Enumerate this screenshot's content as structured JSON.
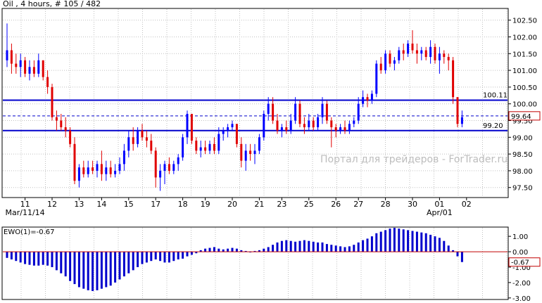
{
  "chart_data": {
    "type": "candlestick",
    "title": "Oil , 4 hours, # 105 / 482",
    "watermark": "Портал для трейдеров - ForTrader.ru",
    "price_ticks": [
      "102.50",
      "102.00",
      "101.50",
      "101.00",
      "100.50",
      "100.00",
      "99.50",
      "99.00",
      "98.50",
      "98.00",
      "97.50"
    ],
    "price_ylim": [
      97.2,
      102.85
    ],
    "x_labels": [
      {
        "i": 4,
        "text": "11"
      },
      {
        "i": 10,
        "text": "12"
      },
      {
        "i": 16,
        "text": "13"
      },
      {
        "i": 21,
        "text": "14"
      },
      {
        "i": 27,
        "text": "15"
      },
      {
        "i": 33,
        "text": "17"
      },
      {
        "i": 39,
        "text": "18"
      },
      {
        "i": 44,
        "text": "19"
      },
      {
        "i": 50,
        "text": "20"
      },
      {
        "i": 56,
        "text": "21"
      },
      {
        "i": 61,
        "text": "23"
      },
      {
        "i": 67,
        "text": "25"
      },
      {
        "i": 73,
        "text": "26"
      },
      {
        "i": 78,
        "text": "27"
      },
      {
        "i": 84,
        "text": "28"
      },
      {
        "i": 90,
        "text": "30"
      },
      {
        "i": 96,
        "text": "01"
      },
      {
        "i": 102,
        "text": "02"
      }
    ],
    "x_sublabels": [
      {
        "i": 4,
        "text": "Mar/11/14"
      },
      {
        "i": 96,
        "text": "Apr/01"
      }
    ],
    "levels": [
      {
        "value": 100.11,
        "label": "100.11",
        "style": "solid"
      },
      {
        "value": 99.2,
        "label": "99.20",
        "style": "solid"
      },
      {
        "value": 99.64,
        "label": "99.64",
        "style": "dashed",
        "boxed": true
      }
    ],
    "colors": {
      "bull": "#0000ff",
      "bear": "#e00000",
      "ewo": "#0000cc",
      "level": "#0000cc",
      "grid": "#c0c0c0"
    },
    "candles": [
      [
        101.3,
        102.4,
        101.1,
        101.6
      ],
      [
        101.6,
        101.8,
        100.9,
        101.2
      ],
      [
        101.2,
        101.5,
        100.9,
        101.1
      ],
      [
        101.1,
        101.5,
        100.8,
        101.3
      ],
      [
        101.3,
        101.4,
        100.8,
        100.9
      ],
      [
        100.9,
        101.3,
        100.7,
        101.1
      ],
      [
        101.1,
        101.3,
        100.8,
        100.9
      ],
      [
        100.9,
        101.5,
        100.8,
        101.3
      ],
      [
        101.3,
        101.3,
        100.7,
        100.8
      ],
      [
        100.8,
        101.0,
        100.3,
        100.5
      ],
      [
        100.5,
        100.6,
        99.5,
        99.6
      ],
      [
        99.6,
        99.8,
        99.2,
        99.5
      ],
      [
        99.5,
        99.7,
        99.2,
        99.3
      ],
      [
        99.3,
        99.6,
        99.0,
        99.2
      ],
      [
        99.2,
        99.3,
        98.7,
        98.8
      ],
      [
        98.8,
        99.0,
        97.6,
        97.7
      ],
      [
        97.7,
        98.2,
        97.5,
        98.1
      ],
      [
        98.1,
        98.3,
        97.8,
        97.9
      ],
      [
        97.9,
        98.3,
        97.8,
        98.1
      ],
      [
        98.1,
        98.3,
        97.9,
        98.0
      ],
      [
        98.0,
        98.3,
        97.8,
        98.2
      ],
      [
        98.2,
        98.6,
        97.7,
        97.9
      ],
      [
        97.9,
        98.3,
        97.7,
        98.1
      ],
      [
        98.1,
        98.3,
        97.8,
        97.9
      ],
      [
        97.9,
        98.2,
        97.8,
        98.0
      ],
      [
        98.0,
        98.4,
        97.9,
        98.2
      ],
      [
        98.2,
        98.8,
        98.0,
        98.6
      ],
      [
        98.6,
        99.2,
        98.4,
        99.0
      ],
      [
        99.0,
        99.3,
        98.6,
        98.8
      ],
      [
        98.8,
        99.3,
        98.7,
        99.2
      ],
      [
        99.2,
        99.4,
        98.9,
        99.0
      ],
      [
        99.0,
        99.2,
        98.7,
        98.9
      ],
      [
        98.9,
        99.1,
        98.5,
        98.6
      ],
      [
        98.6,
        98.7,
        97.5,
        97.8
      ],
      [
        97.8,
        98.2,
        97.4,
        98.0
      ],
      [
        98.0,
        98.3,
        97.6,
        98.2
      ],
      [
        98.2,
        98.4,
        97.9,
        98.0
      ],
      [
        98.0,
        98.3,
        97.9,
        98.2
      ],
      [
        98.2,
        98.5,
        98.0,
        98.4
      ],
      [
        98.4,
        99.1,
        98.3,
        99.0
      ],
      [
        99.0,
        99.8,
        98.8,
        99.7
      ],
      [
        99.7,
        99.7,
        98.8,
        98.9
      ],
      [
        98.9,
        99.0,
        98.5,
        98.6
      ],
      [
        98.6,
        98.9,
        98.4,
        98.7
      ],
      [
        98.7,
        98.9,
        98.5,
        98.6
      ],
      [
        98.6,
        98.9,
        98.5,
        98.8
      ],
      [
        98.8,
        99.0,
        98.5,
        98.6
      ],
      [
        98.6,
        99.3,
        98.5,
        99.1
      ],
      [
        99.1,
        99.3,
        98.9,
        99.2
      ],
      [
        99.2,
        99.4,
        99.0,
        99.3
      ],
      [
        99.3,
        99.5,
        99.2,
        99.4
      ],
      [
        99.4,
        99.4,
        98.7,
        98.8
      ],
      [
        98.8,
        99.0,
        98.1,
        98.3
      ],
      [
        98.3,
        98.8,
        98.0,
        98.6
      ],
      [
        98.6,
        98.8,
        98.3,
        98.5
      ],
      [
        98.5,
        98.8,
        98.2,
        98.6
      ],
      [
        98.6,
        99.1,
        98.5,
        99.0
      ],
      [
        99.0,
        99.8,
        98.9,
        99.7
      ],
      [
        99.7,
        100.2,
        99.5,
        100.0
      ],
      [
        100.0,
        100.2,
        99.4,
        99.5
      ],
      [
        99.5,
        99.7,
        99.1,
        99.2
      ],
      [
        99.2,
        99.4,
        99.0,
        99.3
      ],
      [
        99.3,
        99.5,
        99.1,
        99.2
      ],
      [
        99.2,
        99.7,
        99.1,
        99.5
      ],
      [
        99.5,
        100.2,
        99.4,
        100.0
      ],
      [
        100.0,
        100.1,
        99.3,
        99.4
      ],
      [
        99.4,
        99.6,
        99.1,
        99.3
      ],
      [
        99.3,
        99.7,
        99.2,
        99.5
      ],
      [
        99.5,
        99.6,
        99.2,
        99.3
      ],
      [
        99.3,
        99.7,
        99.2,
        99.6
      ],
      [
        99.6,
        100.2,
        99.4,
        100.0
      ],
      [
        100.0,
        100.1,
        99.4,
        99.5
      ],
      [
        99.5,
        99.6,
        98.7,
        99.3
      ],
      [
        99.3,
        99.4,
        99.0,
        99.2
      ],
      [
        99.2,
        99.4,
        99.1,
        99.3
      ],
      [
        99.3,
        99.5,
        99.1,
        99.2
      ],
      [
        99.2,
        99.5,
        99.1,
        99.4
      ],
      [
        99.4,
        99.6,
        99.3,
        99.5
      ],
      [
        99.5,
        100.2,
        99.4,
        100.0
      ],
      [
        100.0,
        100.4,
        99.9,
        100.2
      ],
      [
        100.2,
        100.3,
        99.9,
        100.1
      ],
      [
        100.1,
        100.4,
        100.0,
        100.3
      ],
      [
        100.3,
        101.3,
        100.2,
        101.2
      ],
      [
        101.2,
        101.4,
        100.9,
        101.0
      ],
      [
        101.0,
        101.6,
        100.9,
        101.5
      ],
      [
        101.5,
        101.6,
        101.1,
        101.2
      ],
      [
        101.2,
        101.4,
        101.0,
        101.3
      ],
      [
        101.3,
        101.7,
        101.2,
        101.6
      ],
      [
        101.6,
        101.8,
        101.3,
        101.5
      ],
      [
        101.5,
        101.9,
        101.4,
        101.8
      ],
      [
        101.8,
        102.2,
        101.5,
        101.6
      ],
      [
        101.6,
        101.8,
        101.2,
        101.5
      ],
      [
        101.5,
        101.7,
        101.3,
        101.6
      ],
      [
        101.6,
        101.7,
        101.3,
        101.4
      ],
      [
        101.4,
        101.9,
        101.2,
        101.7
      ],
      [
        101.7,
        101.8,
        101.2,
        101.3
      ],
      [
        101.3,
        101.7,
        100.9,
        101.5
      ],
      [
        101.5,
        101.6,
        101.2,
        101.4
      ],
      [
        101.4,
        101.5,
        101.0,
        101.3
      ],
      [
        101.3,
        101.4,
        100.0,
        100.2
      ],
      [
        100.2,
        100.2,
        99.3,
        99.4
      ],
      [
        99.4,
        99.8,
        99.3,
        99.6
      ]
    ],
    "ewo": {
      "label": "EWO(1)=-0.67",
      "ticks": [
        "1.00",
        "0.00",
        "-1.00",
        "-2.00",
        "-3.00"
      ],
      "value_label": "-0.67",
      "ylim": [
        -3.1,
        1.6
      ],
      "values": [
        -0.4,
        -0.5,
        -0.6,
        -0.7,
        -0.8,
        -0.85,
        -0.9,
        -0.9,
        -0.85,
        -0.9,
        -1.0,
        -1.2,
        -1.4,
        -1.6,
        -1.9,
        -2.1,
        -2.3,
        -2.4,
        -2.5,
        -2.55,
        -2.5,
        -2.4,
        -2.3,
        -2.2,
        -2.0,
        -1.8,
        -1.6,
        -1.4,
        -1.2,
        -1.0,
        -0.8,
        -0.7,
        -0.6,
        -0.5,
        -0.6,
        -0.7,
        -0.7,
        -0.6,
        -0.5,
        -0.45,
        -0.3,
        -0.2,
        -0.1,
        0.1,
        0.2,
        0.25,
        0.3,
        0.2,
        0.15,
        0.2,
        0.25,
        0.2,
        0.1,
        0.05,
        0.0,
        0.05,
        0.1,
        0.2,
        0.3,
        0.45,
        0.6,
        0.7,
        0.75,
        0.7,
        0.65,
        0.7,
        0.75,
        0.7,
        0.65,
        0.6,
        0.6,
        0.5,
        0.45,
        0.4,
        0.35,
        0.3,
        0.35,
        0.45,
        0.6,
        0.75,
        0.85,
        1.0,
        1.2,
        1.3,
        1.4,
        1.5,
        1.55,
        1.5,
        1.45,
        1.4,
        1.35,
        1.3,
        1.25,
        1.2,
        1.1,
        1.0,
        0.9,
        0.7,
        0.4,
        0.1,
        -0.3,
        -0.67
      ]
    }
  }
}
